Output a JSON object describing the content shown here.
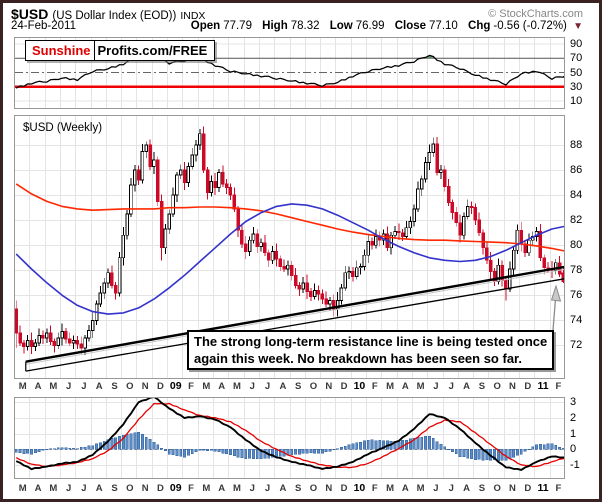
{
  "header": {
    "symbol": "$USD",
    "symbol_desc": "(US Dollar Index (EOD))",
    "exchange": "INDX",
    "date": "24-Feb-2011",
    "copyright": "© StockCharts.com",
    "quote": {
      "open_label": "Open",
      "open": "77.79",
      "high_label": "High",
      "high": "78.32",
      "low_label": "Low",
      "low": "76.99",
      "close_label": "Close",
      "close": "77.10",
      "chg_label": "Chg",
      "chg": "-0.56 (-0.72%)",
      "down_triangle": "▼"
    }
  },
  "overlay": {
    "brand_red": "Sunshine",
    "brand_black": "Profits.com/FREE"
  },
  "annotation": {
    "line1": "The strong long-term resistance line is being tested once",
    "line2": "again this week. No breakdown has been seen so far."
  },
  "colors": {
    "frame": "#3b2222",
    "candle_up": "#000000",
    "candle_up_fill": "#ffffff",
    "candle_down": "#cc0a28",
    "ma_red": "#ff2800",
    "ma_blue": "#3333cc",
    "rsi_line": "#000000",
    "rsi_overbought_fill": "#6d9471",
    "rsi_oversold_line": "#f00000",
    "macd_line": "#000000",
    "signal_line": "#e80000",
    "hist_fill": "#5b8bc5",
    "hist_stroke": "#2f5f9e",
    "grid": "#e4e4e4",
    "panel_border": "#999999",
    "trendline": "#000000",
    "arrow": "#8a8a8a",
    "triangle": "#7c2230"
  },
  "chart_data": {
    "type": "candlestick",
    "title": "$USD (Weekly)",
    "frequency": "weekly",
    "x_range": "Mar 2008 - Feb 2011",
    "months": [
      {
        "label": "M",
        "year": false
      },
      {
        "label": "A",
        "year": false
      },
      {
        "label": "M",
        "year": false
      },
      {
        "label": "J",
        "year": false
      },
      {
        "label": "J",
        "year": false
      },
      {
        "label": "A",
        "year": false
      },
      {
        "label": "S",
        "year": false
      },
      {
        "label": "O",
        "year": false
      },
      {
        "label": "N",
        "year": false
      },
      {
        "label": "D",
        "year": false
      },
      {
        "label": "09",
        "year": true
      },
      {
        "label": "F",
        "year": false
      },
      {
        "label": "M",
        "year": false
      },
      {
        "label": "A",
        "year": false
      },
      {
        "label": "M",
        "year": false
      },
      {
        "label": "J",
        "year": false
      },
      {
        "label": "J",
        "year": false
      },
      {
        "label": "A",
        "year": false
      },
      {
        "label": "S",
        "year": false
      },
      {
        "label": "O",
        "year": false
      },
      {
        "label": "N",
        "year": false
      },
      {
        "label": "D",
        "year": false
      },
      {
        "label": "10",
        "year": true
      },
      {
        "label": "F",
        "year": false
      },
      {
        "label": "M",
        "year": false
      },
      {
        "label": "A",
        "year": false
      },
      {
        "label": "M",
        "year": false
      },
      {
        "label": "J",
        "year": false
      },
      {
        "label": "J",
        "year": false
      },
      {
        "label": "A",
        "year": false
      },
      {
        "label": "S",
        "year": false
      },
      {
        "label": "O",
        "year": false
      },
      {
        "label": "N",
        "year": false
      },
      {
        "label": "D",
        "year": false
      },
      {
        "label": "11",
        "year": true
      },
      {
        "label": "F",
        "year": false
      }
    ],
    "axes": {
      "rsi_ticks": [
        90,
        70,
        50,
        30,
        10
      ],
      "price_ticks": [
        88,
        86,
        84,
        82,
        80,
        78,
        76,
        74,
        72
      ],
      "macd_ticks": [
        3,
        2,
        1,
        0,
        -1
      ],
      "price_ylim": [
        69.4,
        90.4
      ],
      "rsi_ylim": [
        0,
        100
      ],
      "macd_ylim": [
        -1.85,
        3.33
      ]
    },
    "rsi_panel": {
      "overbought_level": 70,
      "mid_level": 50,
      "oversold_level": 30,
      "monthly_values": [
        28,
        35,
        38,
        42,
        40,
        52,
        55,
        62,
        73,
        74.5,
        63,
        67,
        70,
        60,
        52,
        48,
        45,
        42,
        38,
        35,
        32,
        36,
        45,
        52,
        56,
        60,
        66,
        74,
        62,
        56,
        46,
        40,
        34,
        48,
        52,
        42,
        45
      ],
      "jitter_cycle": [
        0,
        1.4,
        -0.9,
        0.7,
        -1.2,
        0.4,
        1.1,
        -0.6,
        -1.5,
        0.9,
        0.3,
        -0.8
      ]
    },
    "price_panel": {
      "open_rule": "previous_close",
      "first_open": 74.9,
      "weekly_closes": [
        73.0,
        72.2,
        71.9,
        72.4,
        71.9,
        72.2,
        72.8,
        72.6,
        73.0,
        72.3,
        72.0,
        72.6,
        73.1,
        72.5,
        72.2,
        72.4,
        72.1,
        71.8,
        72.6,
        73.2,
        74.0,
        75.3,
        76.2,
        77.0,
        77.8,
        76.8,
        76.2,
        79.0,
        80.8,
        82.5,
        84.8,
        86.0,
        85.2,
        87.5,
        88.0,
        86.3,
        86.8,
        83.5,
        79.8,
        81.3,
        82.5,
        84.0,
        85.6,
        86.0,
        85.0,
        86.3,
        87.2,
        88.0,
        88.9,
        86.0,
        84.2,
        85.1,
        84.6,
        85.8,
        84.9,
        84.6,
        84.0,
        82.9,
        81.2,
        80.1,
        79.5,
        80.4,
        80.9,
        79.9,
        80.2,
        79.4,
        78.8,
        79.5,
        78.9,
        78.3,
        78.1,
        78.4,
        77.6,
        76.8,
        76.5,
        77.0,
        76.3,
        75.9,
        76.4,
        76.1,
        75.7,
        75.3,
        75.6,
        74.9,
        75.6,
        76.6,
        77.8,
        77.9,
        77.5,
        78.2,
        78.3,
        79.2,
        80.3,
        80.0,
        80.7,
        80.4,
        80.9,
        79.8,
        80.8,
        81.1,
        81.0,
        80.7,
        81.4,
        81.9,
        82.9,
        84.5,
        85.3,
        86.6,
        87.4,
        88.1,
        85.8,
        86.0,
        84.7,
        83.4,
        82.6,
        81.8,
        80.8,
        82.3,
        83.1,
        83.0,
        82.0,
        81.0,
        79.8,
        78.8,
        77.9,
        77.1,
        78.4,
        77.2,
        76.5,
        78.1,
        79.6,
        81.2,
        80.1,
        79.4,
        80.4,
        80.7,
        81.1,
        79.0,
        78.2,
        78.1,
        78.0,
        78.6,
        77.7,
        77.1
      ],
      "wick_up_cycle": [
        0.35,
        0.6,
        0.25,
        0.45,
        0.65,
        0.3,
        0.55,
        0.4
      ],
      "wick_dn_cycle": [
        0.4,
        0.25,
        0.55,
        0.3,
        0.6,
        0.35,
        0.25,
        0.5
      ],
      "overrides": {
        "0": [
          75.6,
          71.8,
          74.9
        ],
        "17": [
          null,
          71.3,
          null
        ],
        "34": [
          88.3,
          null,
          null
        ],
        "38": [
          null,
          78.8,
          null
        ],
        "48": [
          89.3,
          null,
          null
        ],
        "83": [
          null,
          74.3,
          null
        ],
        "109": [
          88.6,
          null,
          null
        ],
        "128": [
          null,
          75.6,
          null
        ],
        "143": [
          78.32,
          76.99,
          77.79
        ]
      },
      "ma_red_monthly": [
        84.9,
        84.1,
        83.5,
        83.1,
        82.9,
        82.8,
        82.85,
        82.9,
        82.9,
        82.9,
        83.0,
        83.0,
        83.05,
        83.05,
        83.0,
        82.9,
        82.75,
        82.5,
        82.2,
        81.9,
        81.6,
        81.3,
        81.05,
        80.85,
        80.7,
        80.55,
        80.45,
        80.4,
        80.4,
        80.35,
        80.3,
        80.25,
        80.2,
        80.1,
        79.95,
        79.75,
        79.55
      ],
      "ma_blue_monthly": [
        79.3,
        78.1,
        77.0,
        76.0,
        75.2,
        74.7,
        74.5,
        74.6,
        75.0,
        75.7,
        76.6,
        77.6,
        78.7,
        79.8,
        80.9,
        81.9,
        82.6,
        83.1,
        83.3,
        83.2,
        82.9,
        82.4,
        81.8,
        81.2,
        80.5,
        79.9,
        79.4,
        79.0,
        78.8,
        78.7,
        78.8,
        79.1,
        79.6,
        80.2,
        80.8,
        81.3,
        81.5
      ],
      "trendlines": {
        "upper": {
          "week1": 2.5,
          "value1": 70.7,
          "week2": 143.8,
          "value2": 78.3
        },
        "lower": {
          "week1": 2.5,
          "value1": 69.95,
          "week2": 143.8,
          "value2": 77.35
        }
      }
    },
    "macd_panel": {
      "macd_monthly": [
        -0.75,
        -1.25,
        -1.1,
        -0.9,
        -0.8,
        -0.35,
        0.5,
        1.6,
        3.0,
        3.35,
        2.6,
        2.0,
        2.1,
        1.9,
        1.4,
        0.6,
        -0.1,
        -0.5,
        -0.8,
        -1.0,
        -1.25,
        -1.1,
        -0.8,
        -0.3,
        0.1,
        0.55,
        1.3,
        2.25,
        2.0,
        1.3,
        0.4,
        -0.4,
        -1.15,
        -1.3,
        -0.8,
        -0.45,
        -0.55
      ],
      "signal_monthly": [
        -0.55,
        -0.95,
        -1.1,
        -1.0,
        -0.85,
        -0.6,
        -0.1,
        0.7,
        1.9,
        2.9,
        2.9,
        2.5,
        2.15,
        2.0,
        1.75,
        1.2,
        0.5,
        0.0,
        -0.45,
        -0.75,
        -1.0,
        -1.15,
        -1.15,
        -0.9,
        -0.45,
        0.05,
        0.6,
        1.4,
        1.85,
        1.75,
        1.05,
        0.3,
        -0.45,
        -1.0,
        -1.1,
        -0.8,
        -0.5
      ],
      "hist_monthly": [
        -0.2,
        -0.3,
        0.0,
        0.1,
        0.05,
        0.25,
        0.6,
        0.9,
        1.1,
        0.45,
        -0.3,
        -0.5,
        -0.05,
        -0.1,
        -0.35,
        -0.6,
        -0.6,
        -0.5,
        -0.35,
        -0.25,
        -0.25,
        0.05,
        0.35,
        0.6,
        0.55,
        0.5,
        0.7,
        0.85,
        0.15,
        -0.45,
        -0.65,
        -0.7,
        -0.7,
        -0.3,
        0.3,
        0.35,
        -0.05
      ],
      "jitter_cycle": [
        0,
        0.04,
        -0.05,
        0.03,
        -0.03,
        0.05,
        -0.04,
        0.02
      ]
    }
  }
}
